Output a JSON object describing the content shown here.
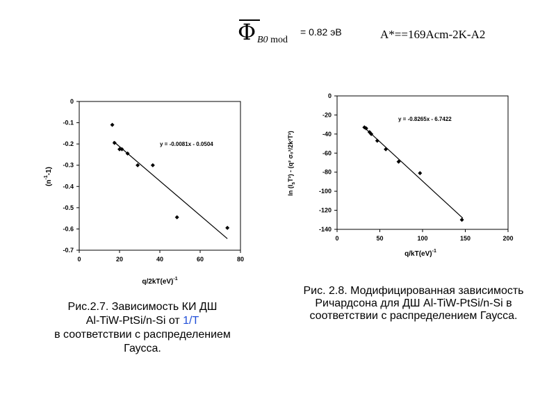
{
  "header": {
    "phi_symbol": "Φ",
    "phi_sub": "B0",
    "phi_sub2": "mod",
    "phi_value": "= 0.82 эВ",
    "richardson": "A*==169Acm-2K-A2"
  },
  "chart_data": [
    {
      "type": "scatter",
      "xlabel": "q/2kT(eV)",
      "xlabel_sup": "-1",
      "ylabel": "(n",
      "ylabel_sup": "-1",
      "ylabel_end": "-1)",
      "xlim": [
        0,
        80
      ],
      "ylim": [
        -0.7,
        0
      ],
      "xticks": [
        "0",
        "20",
        "40",
        "60",
        "80"
      ],
      "yticks": [
        "0",
        "-0.1",
        "-0.2",
        "-0.3",
        "-0.4",
        "-0.5",
        "-0.6",
        "-0.7"
      ],
      "points": [
        {
          "x": 16.4,
          "y": -0.11
        },
        {
          "x": 17.5,
          "y": -0.195
        },
        {
          "x": 20.0,
          "y": -0.225
        },
        {
          "x": 21.2,
          "y": -0.225
        },
        {
          "x": 24.0,
          "y": -0.245
        },
        {
          "x": 29.0,
          "y": -0.3
        },
        {
          "x": 36.5,
          "y": -0.3
        },
        {
          "x": 48.5,
          "y": -0.545
        },
        {
          "x": 73.5,
          "y": -0.595
        }
      ],
      "trendline": {
        "slope": -0.0081,
        "intercept": -0.0504,
        "x_range": [
          17,
          73.5
        ]
      },
      "equation": "y = -0.0081x - 0.0504",
      "grid": false
    },
    {
      "type": "scatter",
      "xlabel": "q/kT(eV)",
      "xlabel_sup": "-1",
      "ylabel": "ln (I",
      "ylabel_end": "T²) - (q² σ₀²/2k²T²)",
      "ylabel_sub": "s",
      "xlim": [
        0,
        200
      ],
      "ylim": [
        -140,
        0
      ],
      "xticks": [
        "0",
        "50",
        "100",
        "150",
        "200"
      ],
      "yticks": [
        "0",
        "-20",
        "-40",
        "-60",
        "-80",
        "-100",
        "-120",
        "-140"
      ],
      "points": [
        {
          "x": 32,
          "y": -33
        },
        {
          "x": 34,
          "y": -34
        },
        {
          "x": 38,
          "y": -38
        },
        {
          "x": 40,
          "y": -40
        },
        {
          "x": 47,
          "y": -47
        },
        {
          "x": 57,
          "y": -56
        },
        {
          "x": 72,
          "y": -69
        },
        {
          "x": 97,
          "y": -81
        },
        {
          "x": 146,
          "y": -130
        }
      ],
      "trendline": {
        "slope": -0.8265,
        "intercept": -6.7422,
        "x_range": [
          32,
          147
        ]
      },
      "equation": "y = -0.8265x - 6.7422",
      "grid": false
    }
  ],
  "captions": {
    "left": {
      "line1": "Рис.2.7.   Зависимость КИ  ДШ",
      "line2_a": "Al-TiW-PtSi/n-Si от ",
      "line2_b": "1/T",
      "line3": "в соответствии с распределением",
      "line4": "Гаусса."
    },
    "right": {
      "line1": "Рис. 2.8. Модифицированная зависимость",
      "line2": "Ричардсона для ДШ Al-TiW-PtSi/n-Si  в",
      "line3": "соответствии с распределением Гаусса."
    }
  },
  "colors": {
    "text": "#000000",
    "accent": "#1f4ed8"
  }
}
